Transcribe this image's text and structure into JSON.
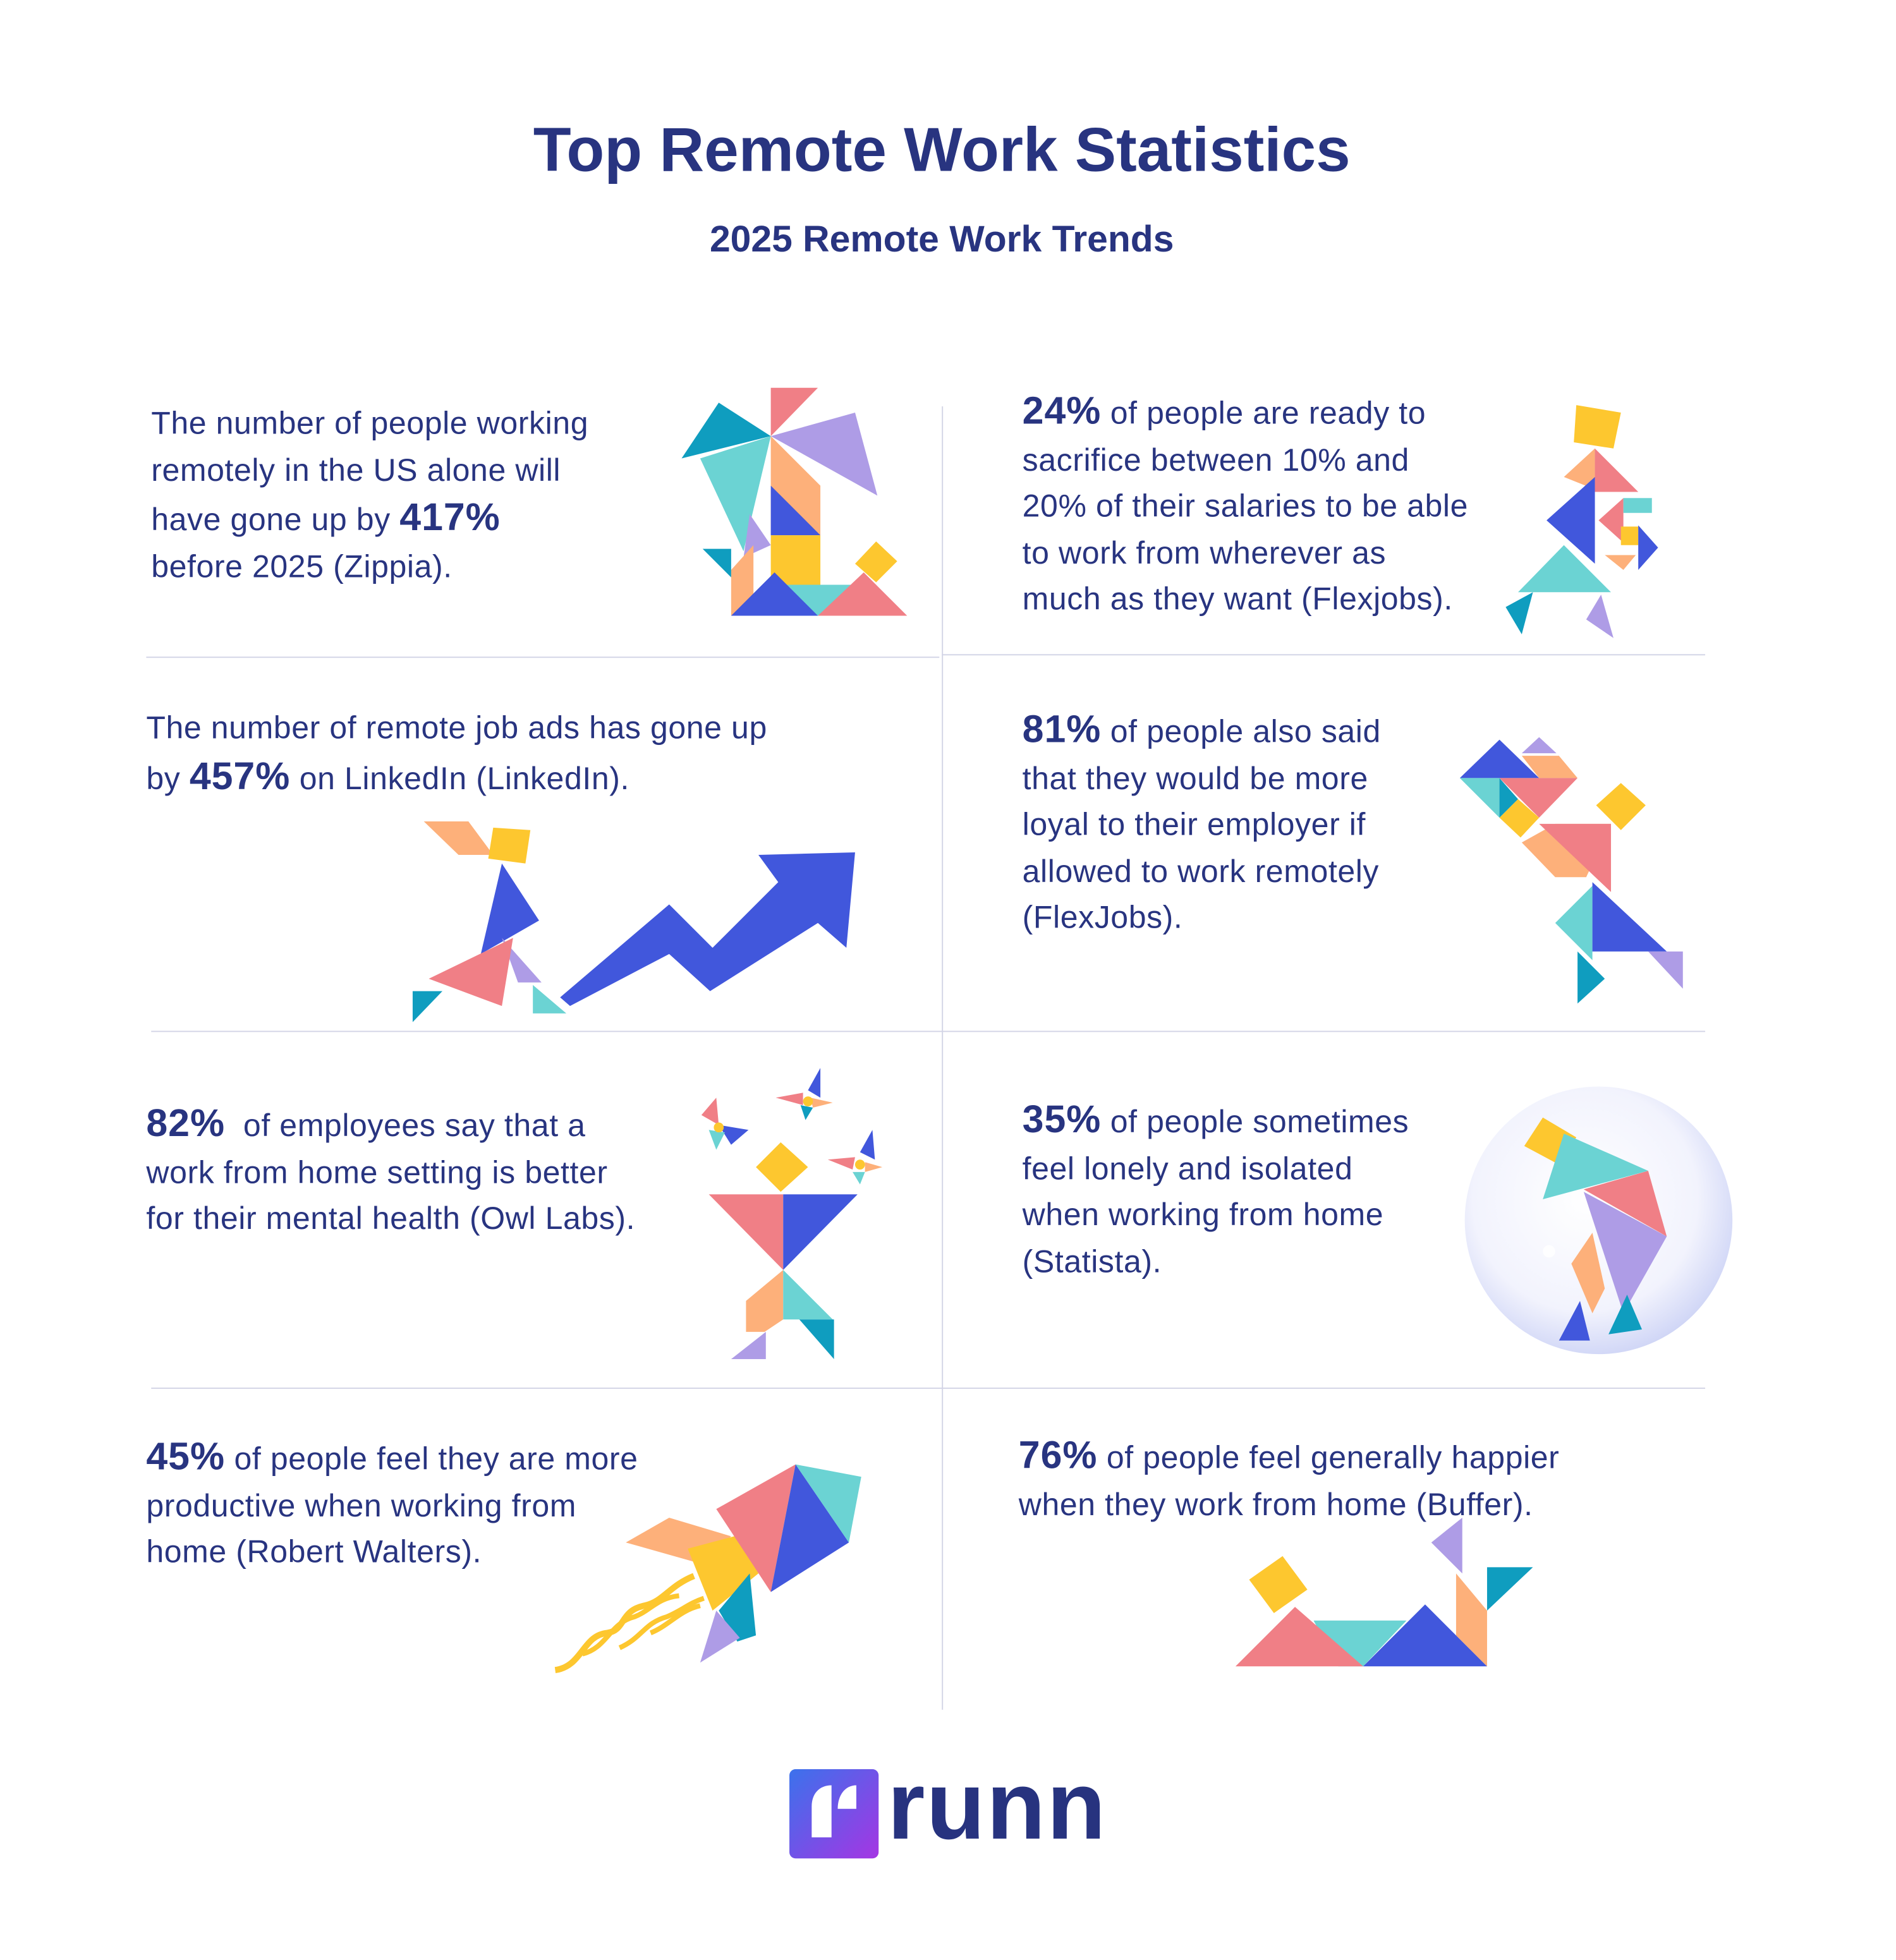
{
  "header": {
    "title": "Top Remote Work Statistics",
    "subtitle": "2025 Remote Work Trends"
  },
  "stats": [
    {
      "pre": "The number of people working\nremotely in the US alone will\nhave gone up by ",
      "value": "417%",
      "post": "\nbefore 2025 (Zippia)."
    },
    {
      "pre": "",
      "value": "24%",
      "post": " of people are ready to\nsacrifice between 10% and\n20% of their salaries to be able\nto work from wherever as\nmuch as they want (Flexjobs)."
    },
    {
      "pre": "The number of remote job ads has gone up\nby ",
      "value": "457%",
      "post": " on LinkedIn (LinkedIn)."
    },
    {
      "pre": "",
      "value": "81%",
      "post": " of people also said\nthat they would be more\nloyal to their employer if\nallowed to work remotely\n(FlexJobs)."
    },
    {
      "pre": "",
      "value": "82%",
      "post": "  of employees say that a\nwork from home setting is better\nfor their mental health (Owl Labs)."
    },
    {
      "pre": "",
      "value": "35%",
      "post": " of people sometimes\nfeel lonely and isolated\nwhen working from home\n(Statista)."
    },
    {
      "pre": "",
      "value": "45%",
      "post": " of people feel they are more\nproductive when working from\nhome (Robert Walters)."
    },
    {
      "pre": "",
      "value": "76%",
      "post": " of people feel generally happier\nwhen they work from home (Buffer)."
    }
  ],
  "footer": {
    "logo": "runn"
  },
  "colors": {
    "text": "#283480",
    "pink": "#f07f86",
    "blue": "#4157dc",
    "teal": "#6bd3d3",
    "orange": "#fdb07a",
    "yellow": "#fdc72f",
    "lilac": "#ae9ce6",
    "dark_teal": "#0f9dbf",
    "logo_gradient": [
      "#3b72ec",
      "#a535e3"
    ]
  }
}
